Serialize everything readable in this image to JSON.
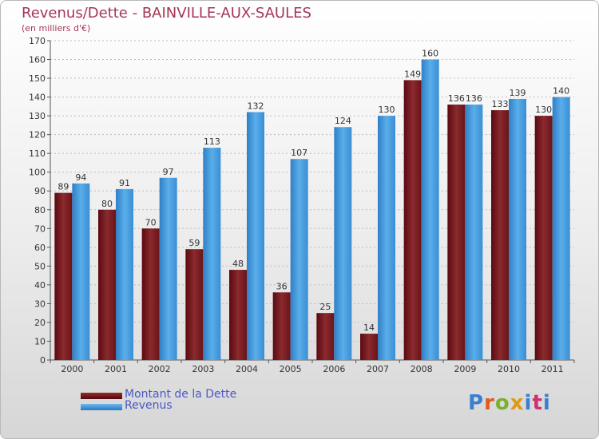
{
  "title": "Revenus/Dette - BAINVILLE-AUX-SAULES",
  "subtitle": "(en milliers d'€)",
  "logo_text": "Proxiti",
  "colors": {
    "dette": "#7a1a1e",
    "revenus": "#3d8fd6",
    "title": "#a53655",
    "legend_text": "#4a58c8"
  },
  "chart_data": {
    "type": "bar",
    "categories": [
      "2000",
      "2001",
      "2002",
      "2003",
      "2004",
      "2005",
      "2006",
      "2007",
      "2008",
      "2009",
      "2010",
      "2011"
    ],
    "series": [
      {
        "name": "Montant de la Dette",
        "values": [
          89,
          80,
          70,
          59,
          48,
          36,
          25,
          14,
          149,
          136,
          133,
          130
        ]
      },
      {
        "name": "Revenus",
        "values": [
          94,
          91,
          97,
          113,
          132,
          107,
          124,
          130,
          160,
          136,
          139,
          140
        ]
      }
    ],
    "ylim": [
      0,
      170
    ],
    "yticks": [
      0,
      10,
      20,
      30,
      40,
      50,
      60,
      70,
      80,
      90,
      100,
      110,
      120,
      130,
      140,
      150,
      160,
      170
    ],
    "grid": true,
    "legend_position": "bottom-left",
    "data_labels": true
  }
}
